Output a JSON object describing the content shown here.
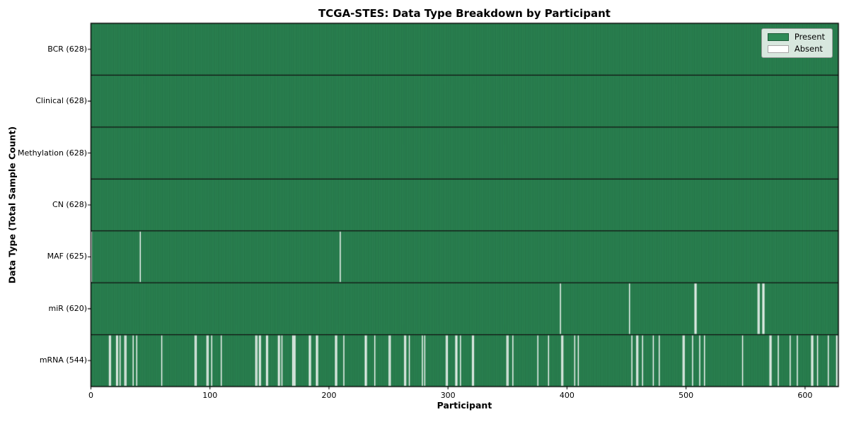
{
  "chart_data": {
    "type": "heatmap",
    "title": "TCGA-STES: Data Type Breakdown by Participant",
    "xlabel": "Participant",
    "ylabel": "Data Type (Total Sample Count)",
    "n_participants": 628,
    "x_ticks": [
      0,
      100,
      200,
      300,
      400,
      500,
      600
    ],
    "grid": false,
    "legend_position": "upper right",
    "legend": [
      {
        "label": "Present",
        "color": "#2e8b57"
      },
      {
        "label": "Absent",
        "color": "#ffffff"
      }
    ],
    "colors": {
      "present": "#2e8b57",
      "absent": "#ffffff",
      "stripe": "rgba(12,44,28,0.45)",
      "separator": "#111111",
      "border": "#000000"
    },
    "rows": [
      {
        "label": "BCR",
        "total": 628,
        "display": "BCR (628)",
        "absent": []
      },
      {
        "label": "Clinical",
        "total": 628,
        "display": "Clinical (628)",
        "absent": []
      },
      {
        "label": "Methylation",
        "total": 628,
        "display": "Methylation (628)",
        "absent": []
      },
      {
        "label": "CN",
        "total": 628,
        "display": "CN (628)",
        "absent": []
      },
      {
        "label": "MAF",
        "total": 625,
        "display": "MAF (625)",
        "absent": [
          0,
          41,
          209
        ]
      },
      {
        "label": "miR",
        "total": 620,
        "display": "miR (620)",
        "absent": [
          394,
          452,
          507,
          508,
          560,
          561,
          564,
          565
        ]
      },
      {
        "label": "mRNA",
        "total": 544,
        "display": "mRNA (544)",
        "absent": [
          15,
          16,
          21,
          22,
          24,
          28,
          29,
          35,
          38,
          59,
          87,
          88,
          97,
          98,
          101,
          109,
          138,
          139,
          141,
          142,
          147,
          148,
          157,
          158,
          160,
          169,
          170,
          171,
          183,
          184,
          189,
          190,
          205,
          206,
          212,
          230,
          231,
          238,
          250,
          251,
          263,
          264,
          267,
          278,
          280,
          298,
          299,
          306,
          307,
          310,
          320,
          321,
          349,
          350,
          354,
          375,
          384,
          395,
          396,
          406,
          409,
          454,
          458,
          459,
          463,
          472,
          477,
          497,
          498,
          505,
          511,
          515,
          547,
          570,
          571,
          577,
          587,
          593,
          605,
          606,
          610,
          619,
          626,
          627
        ]
      }
    ]
  }
}
